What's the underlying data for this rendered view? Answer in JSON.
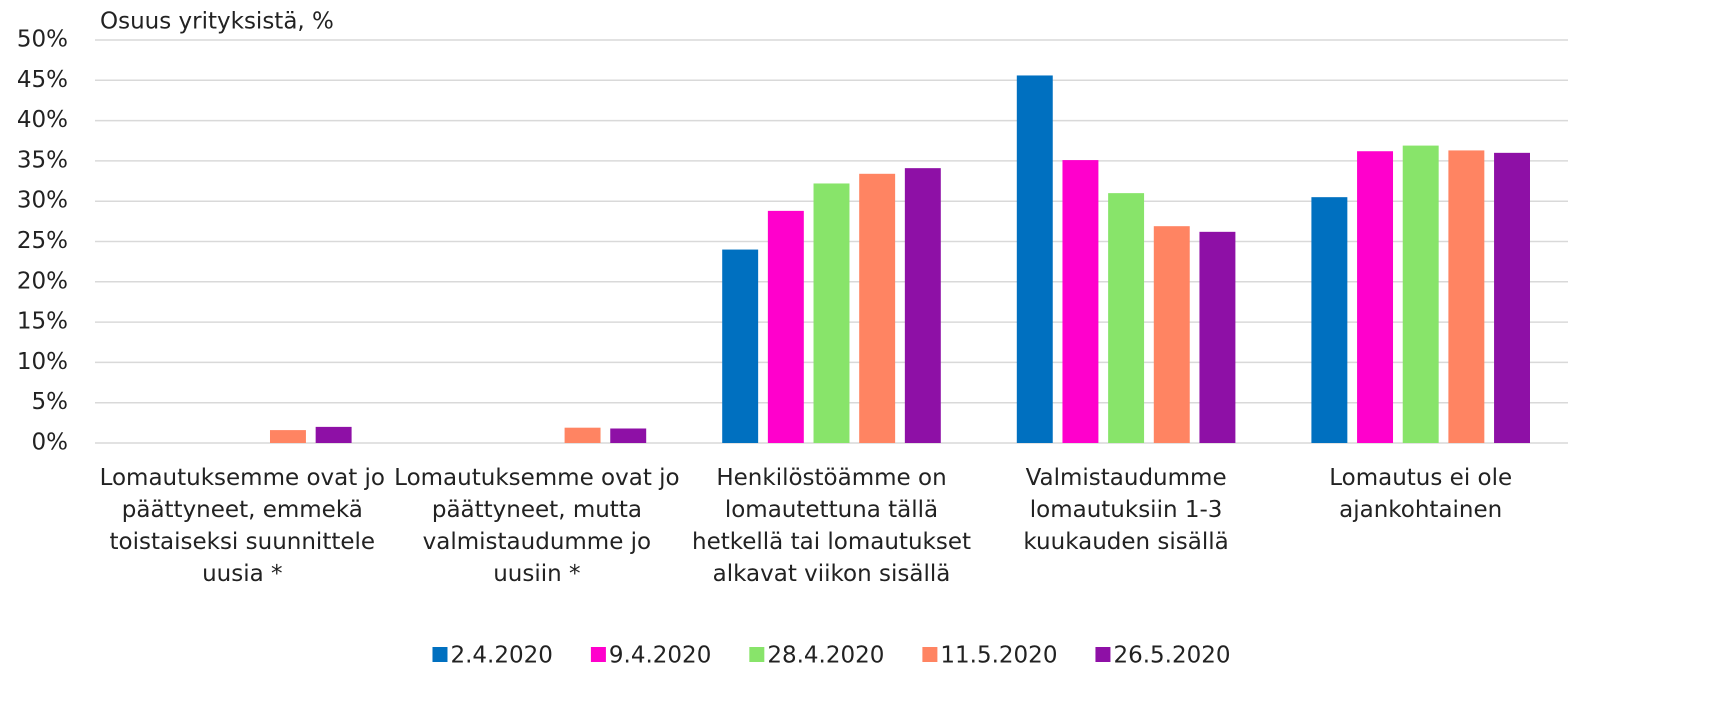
{
  "chart_data": {
    "type": "bar",
    "ylabel": "Osuus yrityksistä, %",
    "categories": [
      "Lomautuksemme ovat jo päättyneet, emmekä toistaiseksi suunnittele uusia *",
      "Lomautuksemme ovat jo päättyneet, mutta valmistaudumme jo uusiin *",
      "Henkilöstöämme on lomautettuna tällä hetkellä tai lomautukset alkavat viikon sisällä",
      "Valmistaudumme lomautuksiin 1-3 kuukauden sisällä",
      "Lomautus ei ole ajankohtainen"
    ],
    "series": [
      {
        "name": "2.4.2020",
        "color": "#0070c0",
        "values": [
          null,
          null,
          24,
          45.6,
          30.5
        ]
      },
      {
        "name": "9.4.2020",
        "color": "#ff00cc",
        "values": [
          null,
          null,
          28.8,
          35.1,
          36.2
        ]
      },
      {
        "name": "28.4.2020",
        "color": "#88e46a",
        "values": [
          null,
          null,
          32.2,
          31,
          36.9
        ]
      },
      {
        "name": "11.5.2020",
        "color": "#ff8462",
        "values": [
          1.6,
          1.9,
          33.4,
          26.9,
          36.3
        ]
      },
      {
        "name": "26.5.2020",
        "color": "#8e10a6",
        "values": [
          2,
          1.8,
          34.1,
          26.2,
          36
        ]
      }
    ],
    "ylim": [
      0,
      50
    ],
    "yticks": [
      {
        "value": 0,
        "label": "0%"
      },
      {
        "value": 5,
        "label": "5%"
      },
      {
        "value": 10,
        "label": "10%"
      },
      {
        "value": 15,
        "label": "15%"
      },
      {
        "value": 20,
        "label": "20%"
      },
      {
        "value": 25,
        "label": "25%"
      },
      {
        "value": 30,
        "label": "30%"
      },
      {
        "value": 35,
        "label": "35%"
      },
      {
        "value": 40,
        "label": "40%"
      },
      {
        "value": 45,
        "label": "45%"
      },
      {
        "value": 50,
        "label": "50%"
      }
    ],
    "grid": true,
    "legend": "bottom"
  }
}
